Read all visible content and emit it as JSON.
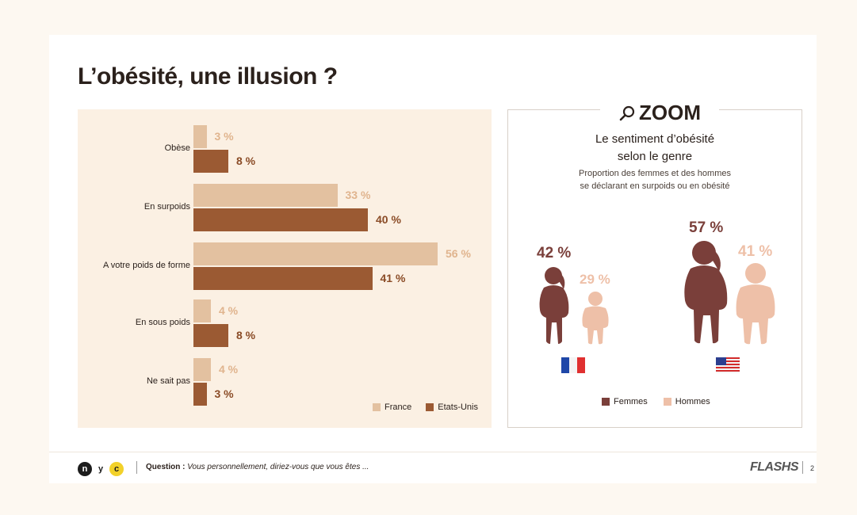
{
  "title": "L’obésité, une illusion ?",
  "chart_data": [
    {
      "type": "bar",
      "orientation": "horizontal",
      "categories": [
        "Obèse",
        "En surpoids",
        "A votre poids de forme",
        "En sous poids",
        "Ne sait pas"
      ],
      "series": [
        {
          "name": "France",
          "values": [
            3,
            33,
            56,
            4,
            4
          ],
          "color": "#e3c1a0"
        },
        {
          "name": "Etats-Unis",
          "values": [
            8,
            40,
            41,
            8,
            3
          ],
          "color": "#9b5a33"
        }
      ],
      "value_labels": {
        "France": [
          "3 %",
          "33 %",
          "56 %",
          "4 %",
          "4 %"
        ],
        "Etats-Unis": [
          "8 %",
          "40 %",
          "41 %",
          "8 %",
          "3 %"
        ]
      },
      "legend": "bottom-right",
      "grid": false
    },
    {
      "type": "pictogram",
      "title": "Le sentiment d’obésité selon le genre",
      "subtitle": "Proportion des femmes et des hommes se déclarant en surpoids ou en obésité",
      "groups": [
        "France",
        "Etats-Unis"
      ],
      "series": [
        {
          "name": "Femmes",
          "values": [
            42,
            57
          ],
          "color": "#7a3f3a"
        },
        {
          "name": "Hommes",
          "values": [
            29,
            41
          ],
          "color": "#eec0a8"
        }
      ],
      "value_labels": {
        "Femmes": [
          "42 %",
          "57 %"
        ],
        "Hommes": [
          "29 %",
          "41 %"
        ]
      },
      "legend": "bottom"
    }
  ],
  "zoom": {
    "heading": "ZOOM",
    "title_line1": "Le sentiment d’obésité",
    "title_line2": "selon le genre",
    "sub_line1": "Proportion des femmes et des hommes",
    "sub_line2": "se déclarant en surpoids ou en obésité",
    "icons": {
      "heading_icon": "magnifier-icon",
      "france_flag": "france-flag-icon",
      "us_flag": "us-flag-icon"
    }
  },
  "footer": {
    "logo_letters": [
      "n",
      "y",
      "c"
    ],
    "question_label": "Question :",
    "question_text": "Vous personnellement, diriez-vous que vous êtes ...",
    "brand": "FLASHS",
    "page_number": "2"
  }
}
